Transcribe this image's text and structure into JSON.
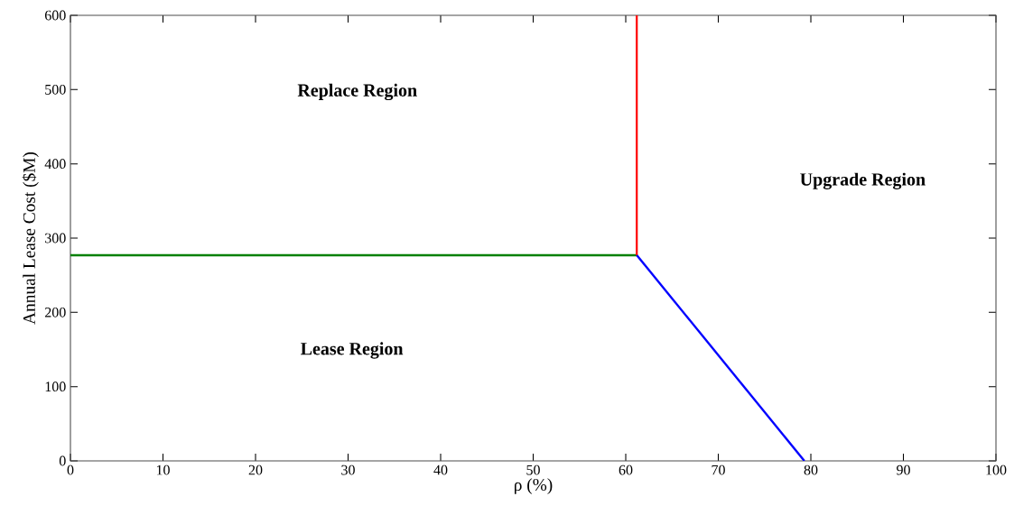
{
  "chart_data": {
    "type": "line",
    "xlabel": "ρ (%)",
    "ylabel": "Annual Lease Cost ($M)",
    "xlim": [
      0,
      100
    ],
    "xticks": [
      0,
      10,
      20,
      30,
      40,
      50,
      60,
      70,
      80,
      90,
      100
    ],
    "ylim": [
      0,
      600
    ],
    "yticks": [
      0,
      100,
      200,
      300,
      400,
      500,
      600
    ],
    "grid": false,
    "marker": "none",
    "line_style": "solid",
    "series": [
      {
        "color": "#008000",
        "x": [
          0,
          61.2
        ],
        "values": [
          277,
          277
        ]
      },
      {
        "color": "#ff0000",
        "x": [
          61.2,
          61.2
        ],
        "values": [
          277,
          600
        ]
      },
      {
        "color": "#0000ff",
        "x": [
          61.2,
          79.3
        ],
        "values": [
          277,
          0
        ]
      }
    ],
    "annotations": [
      "Replace Region",
      "Lease Region",
      "Upgrade Region"
    ]
  }
}
